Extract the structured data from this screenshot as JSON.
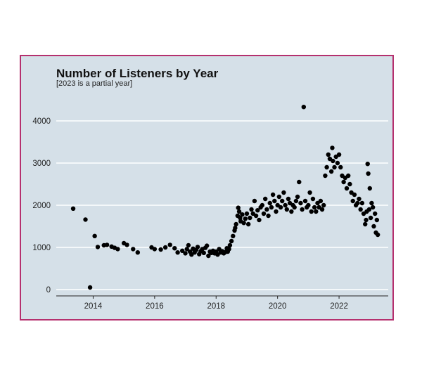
{
  "chart_data": {
    "type": "scatter",
    "title": "Number of Listeners by Year",
    "subtitle": "[2023 is a partial year]",
    "xlabel": "",
    "ylabel": "",
    "xlim": [
      2012.8,
      2023.6
    ],
    "ylim": [
      -150,
      4600
    ],
    "x_ticks": [
      "2014",
      "2016",
      "2018",
      "2020",
      "2022"
    ],
    "y_ticks": [
      "0",
      "1000",
      "2000",
      "3000",
      "4000"
    ],
    "grid": "horizontal",
    "legend": "none",
    "colors": {
      "panel": "#d5e0e8",
      "border": "#b5306e",
      "point": "#000000",
      "grid": "#ffffff"
    },
    "points": [
      [
        2013.35,
        1920
      ],
      [
        2013.75,
        1660
      ],
      [
        2013.9,
        50
      ],
      [
        2014.05,
        1270
      ],
      [
        2014.15,
        1010
      ],
      [
        2014.35,
        1050
      ],
      [
        2014.45,
        1060
      ],
      [
        2014.6,
        1020
      ],
      [
        2014.7,
        990
      ],
      [
        2014.8,
        960
      ],
      [
        2015.0,
        1100
      ],
      [
        2015.1,
        1060
      ],
      [
        2015.3,
        960
      ],
      [
        2015.45,
        880
      ],
      [
        2015.9,
        1000
      ],
      [
        2016.0,
        960
      ],
      [
        2016.2,
        950
      ],
      [
        2016.35,
        1000
      ],
      [
        2016.5,
        1060
      ],
      [
        2016.65,
        980
      ],
      [
        2016.75,
        880
      ],
      [
        2016.9,
        920
      ],
      [
        2017.0,
        860
      ],
      [
        2017.05,
        960
      ],
      [
        2017.1,
        1050
      ],
      [
        2017.15,
        900
      ],
      [
        2017.2,
        830
      ],
      [
        2017.25,
        970
      ],
      [
        2017.3,
        880
      ],
      [
        2017.35,
        940
      ],
      [
        2017.4,
        1010
      ],
      [
        2017.45,
        840
      ],
      [
        2017.5,
        910
      ],
      [
        2017.55,
        960
      ],
      [
        2017.6,
        870
      ],
      [
        2017.65,
        990
      ],
      [
        2017.7,
        1040
      ],
      [
        2017.75,
        800
      ],
      [
        2017.8,
        900
      ],
      [
        2017.85,
        870
      ],
      [
        2017.9,
        920
      ],
      [
        2017.95,
        860
      ],
      [
        2018.0,
        900
      ],
      [
        2018.05,
        830
      ],
      [
        2018.1,
        960
      ],
      [
        2018.15,
        880
      ],
      [
        2018.2,
        910
      ],
      [
        2018.25,
        860
      ],
      [
        2018.3,
        890
      ],
      [
        2018.35,
        980
      ],
      [
        2018.38,
        900
      ],
      [
        2018.42,
        960
      ],
      [
        2018.45,
        1050
      ],
      [
        2018.5,
        1150
      ],
      [
        2018.55,
        1270
      ],
      [
        2018.6,
        1400
      ],
      [
        2018.62,
        1460
      ],
      [
        2018.65,
        1550
      ],
      [
        2018.7,
        1750
      ],
      [
        2018.72,
        1940
      ],
      [
        2018.75,
        1850
      ],
      [
        2018.78,
        1700
      ],
      [
        2018.8,
        1620
      ],
      [
        2018.85,
        1780
      ],
      [
        2018.9,
        1580
      ],
      [
        2018.95,
        1680
      ],
      [
        2019.0,
        1800
      ],
      [
        2019.05,
        1550
      ],
      [
        2019.1,
        1700
      ],
      [
        2019.15,
        1900
      ],
      [
        2019.2,
        1800
      ],
      [
        2019.25,
        2100
      ],
      [
        2019.3,
        1750
      ],
      [
        2019.35,
        1880
      ],
      [
        2019.4,
        1650
      ],
      [
        2019.45,
        1950
      ],
      [
        2019.5,
        2000
      ],
      [
        2019.55,
        1800
      ],
      [
        2019.6,
        2150
      ],
      [
        2019.65,
        1900
      ],
      [
        2019.7,
        1750
      ],
      [
        2019.75,
        2050
      ],
      [
        2019.8,
        1950
      ],
      [
        2019.85,
        2250
      ],
      [
        2019.9,
        2100
      ],
      [
        2019.95,
        1850
      ],
      [
        2020.0,
        2000
      ],
      [
        2020.05,
        2200
      ],
      [
        2020.1,
        1950
      ],
      [
        2020.15,
        2100
      ],
      [
        2020.2,
        2300
      ],
      [
        2020.25,
        2000
      ],
      [
        2020.3,
        1900
      ],
      [
        2020.35,
        2150
      ],
      [
        2020.4,
        2050
      ],
      [
        2020.45,
        1850
      ],
      [
        2020.5,
        2000
      ],
      [
        2020.55,
        1950
      ],
      [
        2020.6,
        2100
      ],
      [
        2020.65,
        2200
      ],
      [
        2020.7,
        2550
      ],
      [
        2020.75,
        2050
      ],
      [
        2020.8,
        1900
      ],
      [
        2020.85,
        4330
      ],
      [
        2020.9,
        2100
      ],
      [
        2020.95,
        1950
      ],
      [
        2021.0,
        2000
      ],
      [
        2021.05,
        2300
      ],
      [
        2021.1,
        1850
      ],
      [
        2021.15,
        2150
      ],
      [
        2021.2,
        1950
      ],
      [
        2021.25,
        1850
      ],
      [
        2021.3,
        2050
      ],
      [
        2021.35,
        1950
      ],
      [
        2021.4,
        2100
      ],
      [
        2021.45,
        1900
      ],
      [
        2021.5,
        2000
      ],
      [
        2021.55,
        2700
      ],
      [
        2021.6,
        2900
      ],
      [
        2021.65,
        3200
      ],
      [
        2021.7,
        3100
      ],
      [
        2021.75,
        2800
      ],
      [
        2021.78,
        3360
      ],
      [
        2021.8,
        3050
      ],
      [
        2021.85,
        2900
      ],
      [
        2021.9,
        3150
      ],
      [
        2021.95,
        3000
      ],
      [
        2022.0,
        3200
      ],
      [
        2022.05,
        2900
      ],
      [
        2022.1,
        2700
      ],
      [
        2022.15,
        2550
      ],
      [
        2022.2,
        2650
      ],
      [
        2022.25,
        2400
      ],
      [
        2022.3,
        2700
      ],
      [
        2022.35,
        2500
      ],
      [
        2022.4,
        2300
      ],
      [
        2022.45,
        2100
      ],
      [
        2022.5,
        2250
      ],
      [
        2022.55,
        2000
      ],
      [
        2022.6,
        2050
      ],
      [
        2022.65,
        2150
      ],
      [
        2022.7,
        1900
      ],
      [
        2022.75,
        2050
      ],
      [
        2022.8,
        1800
      ],
      [
        2022.85,
        1550
      ],
      [
        2022.88,
        1650
      ],
      [
        2022.9,
        1850
      ],
      [
        2022.93,
        2980
      ],
      [
        2022.95,
        2750
      ],
      [
        2022.98,
        1900
      ],
      [
        2023.0,
        2400
      ],
      [
        2023.03,
        1700
      ],
      [
        2023.06,
        2050
      ],
      [
        2023.1,
        1950
      ],
      [
        2023.13,
        1500
      ],
      [
        2023.17,
        1800
      ],
      [
        2023.2,
        1350
      ],
      [
        2023.23,
        1650
      ],
      [
        2023.26,
        1300
      ]
    ]
  }
}
